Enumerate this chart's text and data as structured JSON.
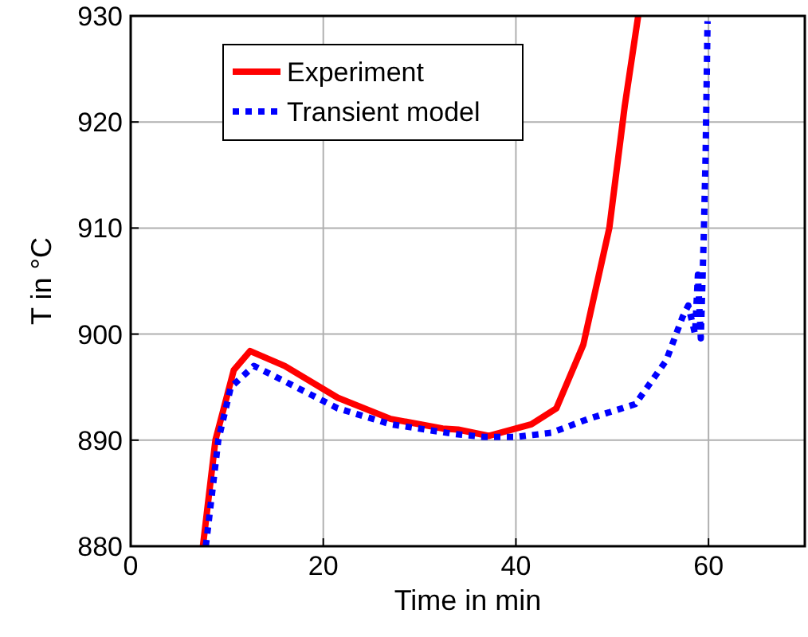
{
  "chart_data": {
    "type": "line",
    "xlabel": "Time in min",
    "ylabel": "T in °C",
    "xlim": [
      0,
      70
    ],
    "ylim": [
      880,
      930
    ],
    "xticks": [
      0,
      20,
      40,
      60
    ],
    "yticks": [
      880,
      890,
      900,
      910,
      920,
      930
    ],
    "grid": true,
    "legend": "top",
    "series": [
      {
        "name": "Experiment",
        "color": "#ff0000",
        "line_style": "solid",
        "x": [
          7.5,
          8.8,
          10.7,
          12.4,
          16,
          21.5,
          27,
          32.4,
          34,
          37.2,
          41.6,
          44.2,
          47,
          49.7,
          51.3,
          52.7
        ],
        "values": [
          880,
          890,
          896.6,
          898.4,
          897,
          894,
          892,
          891.1,
          891,
          890.4,
          891.5,
          893,
          899,
          910,
          921.5,
          930
        ]
      },
      {
        "name": "Transient model",
        "color": "#0000ff",
        "line_style": "dotted",
        "x": [
          7.8,
          9.1,
          10.4,
          12.8,
          16.1,
          21.5,
          27,
          33.5,
          36.7,
          40,
          43.7,
          47.5,
          52.4,
          55.6,
          57.3,
          57.9,
          58.6,
          58.9,
          59.2,
          59.5,
          59.7,
          59.9
        ],
        "values": [
          880,
          890,
          895,
          897,
          895.5,
          893,
          891.5,
          890.6,
          890.3,
          890.3,
          890.7,
          892,
          893.4,
          897.5,
          901.6,
          902.7,
          900,
          905.6,
          899.6,
          909,
          917,
          929.5
        ]
      }
    ]
  }
}
